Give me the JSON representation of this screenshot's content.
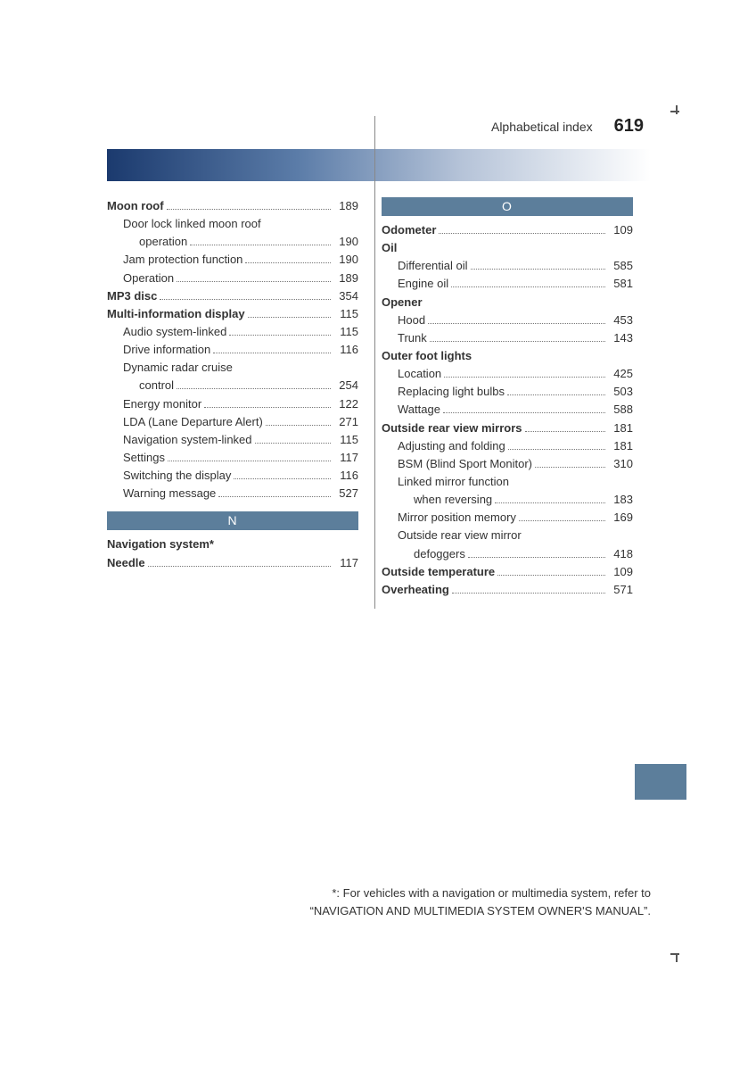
{
  "header": {
    "title": "Alphabetical index",
    "page": "619"
  },
  "left": {
    "entries": [
      {
        "label": "Moon roof",
        "page": "189",
        "bold": true
      },
      {
        "label": "Door lock linked moon roof",
        "sub": 1,
        "nopage": true
      },
      {
        "label": "operation",
        "page": "190",
        "sub": 2
      },
      {
        "label": "Jam protection function",
        "page": "190",
        "sub": 1
      },
      {
        "label": "Operation",
        "page": "189",
        "sub": 1
      },
      {
        "label": "MP3 disc",
        "page": "354",
        "bold": true
      },
      {
        "label": "Multi-information display",
        "page": "115",
        "bold": true
      },
      {
        "label": "Audio system-linked",
        "page": "115",
        "sub": 1
      },
      {
        "label": "Drive information",
        "page": "116",
        "sub": 1
      },
      {
        "label": "Dynamic radar cruise",
        "sub": 1,
        "nopage": true
      },
      {
        "label": "control",
        "page": "254",
        "sub": 2
      },
      {
        "label": "Energy monitor",
        "page": "122",
        "sub": 1
      },
      {
        "label": "LDA (Lane Departure Alert)",
        "page": "271",
        "sub": 1
      },
      {
        "label": "Navigation system-linked",
        "page": "115",
        "sub": 1
      },
      {
        "label": "Settings",
        "page": "117",
        "sub": 1
      },
      {
        "label": "Switching the display",
        "page": "116",
        "sub": 1
      },
      {
        "label": "Warning message",
        "page": "527",
        "sub": 1
      }
    ],
    "section_n": "N",
    "entries_n": [
      {
        "label": "Navigation system*",
        "nopage": true,
        "bold": true
      },
      {
        "label": "Needle",
        "page": "117",
        "bold": true
      }
    ]
  },
  "right": {
    "section_o": "O",
    "entries": [
      {
        "label": "Odometer",
        "page": "109",
        "bold": true
      },
      {
        "label": "Oil",
        "nopage": true,
        "bold": true
      },
      {
        "label": "Differential oil",
        "page": "585",
        "sub": 1
      },
      {
        "label": "Engine oil",
        "page": "581",
        "sub": 1
      },
      {
        "label": "Opener",
        "nopage": true,
        "bold": true
      },
      {
        "label": "Hood",
        "page": "453",
        "sub": 1
      },
      {
        "label": "Trunk",
        "page": "143",
        "sub": 1
      },
      {
        "label": "Outer foot lights",
        "nopage": true,
        "bold": true
      },
      {
        "label": "Location",
        "page": "425",
        "sub": 1
      },
      {
        "label": "Replacing light bulbs",
        "page": "503",
        "sub": 1
      },
      {
        "label": "Wattage",
        "page": "588",
        "sub": 1
      },
      {
        "label": "Outside rear view mirrors",
        "page": "181",
        "bold": true
      },
      {
        "label": "Adjusting and folding",
        "page": "181",
        "sub": 1
      },
      {
        "label": "BSM (Blind Sport Monitor)",
        "page": "310",
        "sub": 1
      },
      {
        "label": "Linked mirror function",
        "sub": 1,
        "nopage": true
      },
      {
        "label": "when reversing",
        "page": "183",
        "sub": 2
      },
      {
        "label": "Mirror position memory",
        "page": "169",
        "sub": 1
      },
      {
        "label": "Outside rear view mirror",
        "sub": 1,
        "nopage": true
      },
      {
        "label": "defoggers",
        "page": "418",
        "sub": 2
      },
      {
        "label": "Outside temperature",
        "page": "109",
        "bold": true
      },
      {
        "label": "Overheating",
        "page": "571",
        "bold": true
      }
    ]
  },
  "footnote": {
    "line1": "*: For vehicles with a navigation or multimedia system, refer to",
    "line2": "“NAVIGATION AND MULTIMEDIA SYSTEM OWNER'S MANUAL”."
  }
}
